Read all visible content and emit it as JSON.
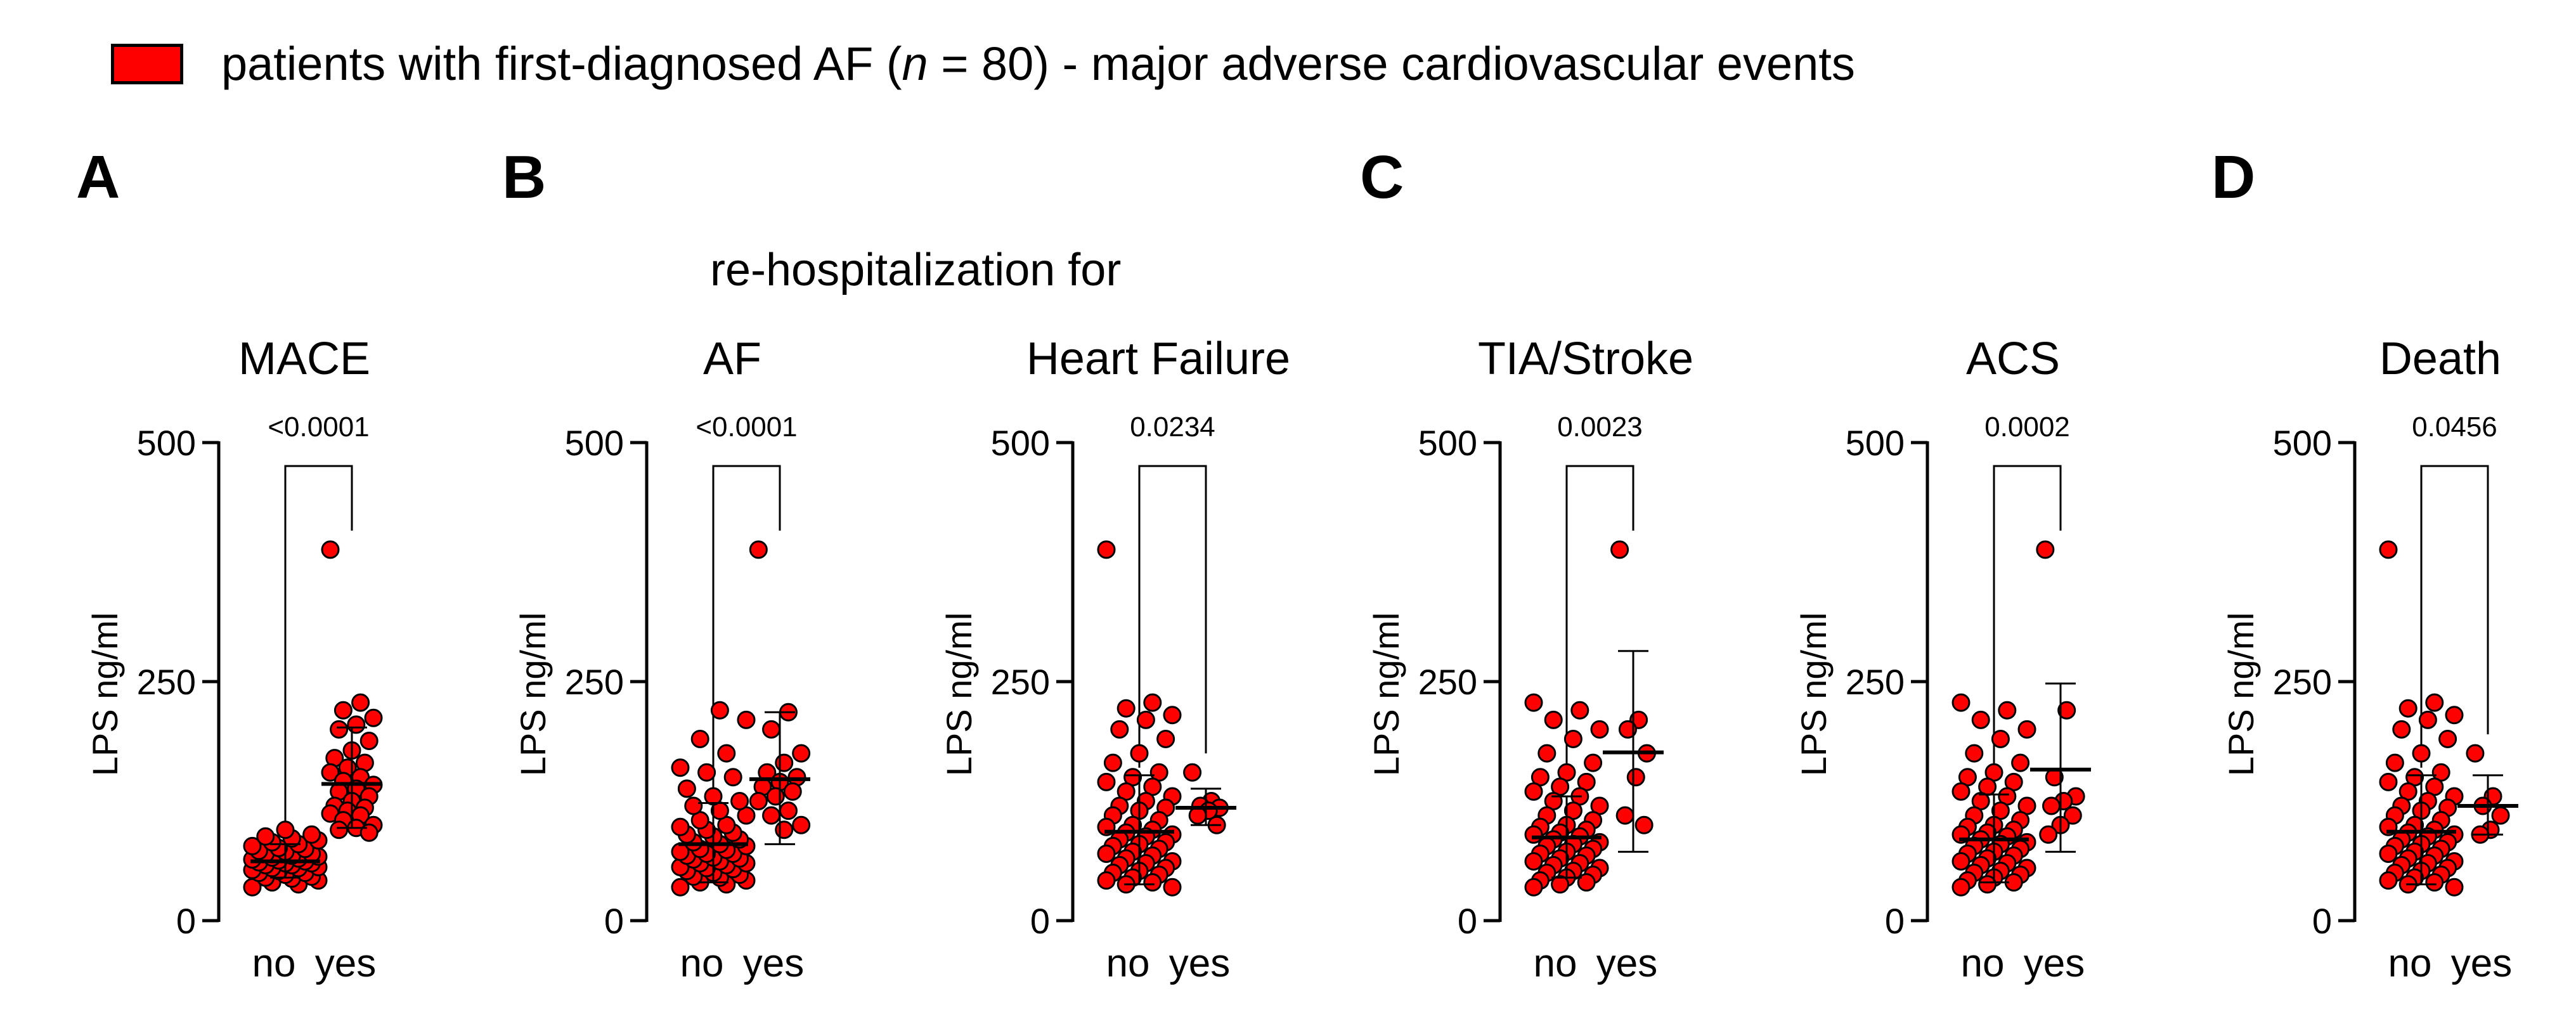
{
  "legend": {
    "prefix": "patients with first-diagnosed AF (",
    "n_symbol": "n",
    "suffix": " = 80) - major adverse cardiovascular events",
    "color": "#ff0000"
  },
  "panel_letters": [
    "A",
    "B",
    "C",
    "D"
  ],
  "group_caption": "re-hospitalization for",
  "colors": {
    "point_fill": "#ff0000",
    "point_stroke": "#000000",
    "axis": "#000000"
  },
  "chart_data": [
    {
      "type": "scatter",
      "title": "MACE",
      "ylabel": "LPS ng/ml",
      "categories": [
        "no",
        "yes"
      ],
      "ylim": [
        0,
        500
      ],
      "yticks": [
        0,
        250,
        500
      ],
      "p_value": "<0.0001",
      "series": [
        {
          "name": "no",
          "mean": 62,
          "sd_low": 45,
          "sd_high": 80,
          "values": [
            35,
            38,
            40,
            42,
            44,
            45,
            46,
            48,
            50,
            50,
            52,
            53,
            55,
            55,
            56,
            58,
            58,
            60,
            60,
            61,
            62,
            63,
            64,
            65,
            66,
            67,
            68,
            70,
            70,
            72,
            73,
            75,
            76,
            78,
            80,
            82,
            84,
            86,
            88,
            90,
            95
          ]
        },
        {
          "name": "yes",
          "mean": 143,
          "sd_low": 97,
          "sd_high": 202,
          "values": [
            388,
            228,
            220,
            212,
            205,
            200,
            188,
            178,
            170,
            165,
            160,
            155,
            150,
            146,
            142,
            138,
            135,
            130,
            125,
            120,
            118,
            115,
            112,
            110,
            105,
            100,
            97,
            95,
            92
          ]
        }
      ]
    },
    {
      "type": "scatter",
      "title": "AF",
      "ylabel": "LPS ng/ml",
      "categories": [
        "no",
        "yes"
      ],
      "ylim": [
        0,
        500
      ],
      "yticks": [
        0,
        250,
        500
      ],
      "p_value": "<0.0001",
      "series": [
        {
          "name": "no",
          "mean": 80,
          "sd_low": 40,
          "sd_high": 123,
          "values": [
            35,
            38,
            40,
            42,
            45,
            46,
            48,
            50,
            52,
            54,
            55,
            56,
            58,
            60,
            60,
            62,
            64,
            65,
            66,
            68,
            70,
            70,
            72,
            74,
            75,
            78,
            80,
            82,
            85,
            88,
            90,
            92,
            95,
            98,
            100,
            105,
            110,
            115,
            120,
            125,
            130,
            138,
            150,
            155,
            160,
            175,
            190,
            210,
            220
          ]
        },
        {
          "name": "yes",
          "mean": 148,
          "sd_low": 80,
          "sd_high": 218,
          "values": [
            388,
            218,
            200,
            175,
            165,
            155,
            150,
            145,
            140,
            135,
            130,
            125,
            115,
            110,
            100,
            95
          ]
        }
      ]
    },
    {
      "type": "scatter",
      "title": "Heart Failure",
      "ylabel": "LPS ng/ml",
      "categories": [
        "no",
        "yes"
      ],
      "ylim": [
        0,
        500
      ],
      "yticks": [
        0,
        250,
        500
      ],
      "p_value": "0.0234",
      "series": [
        {
          "name": "no",
          "mean": 93,
          "sd_low": 38,
          "sd_high": 152,
          "values": [
            388,
            228,
            222,
            215,
            210,
            200,
            190,
            175,
            165,
            155,
            150,
            145,
            140,
            135,
            130,
            125,
            120,
            118,
            115,
            110,
            105,
            100,
            98,
            95,
            92,
            90,
            88,
            85,
            82,
            80,
            78,
            75,
            72,
            70,
            68,
            65,
            62,
            60,
            58,
            55,
            52,
            50,
            48,
            45,
            42,
            40,
            38,
            35
          ]
        },
        {
          "name": "yes",
          "mean": 118,
          "sd_low": 100,
          "sd_high": 138,
          "values": [
            155,
            125,
            120,
            118,
            115,
            110,
            100
          ]
        }
      ]
    },
    {
      "type": "scatter",
      "title": "TIA/Stroke",
      "ylabel": "LPS ng/ml",
      "categories": [
        "no",
        "yes"
      ],
      "ylim": [
        0,
        500
      ],
      "yticks": [
        0,
        250,
        500
      ],
      "p_value": "0.0023",
      "series": [
        {
          "name": "no",
          "mean": 87,
          "sd_low": 45,
          "sd_high": 130,
          "values": [
            228,
            220,
            210,
            200,
            190,
            175,
            165,
            155,
            150,
            145,
            140,
            135,
            130,
            125,
            120,
            115,
            110,
            105,
            100,
            98,
            95,
            92,
            90,
            88,
            85,
            82,
            80,
            78,
            75,
            72,
            70,
            68,
            65,
            62,
            60,
            58,
            55,
            52,
            50,
            48,
            45,
            42,
            40,
            38,
            35
          ]
        },
        {
          "name": "yes",
          "mean": 176,
          "sd_low": 72,
          "sd_high": 282,
          "values": [
            388,
            210,
            200,
            175,
            150,
            110,
            100
          ]
        }
      ]
    },
    {
      "type": "scatter",
      "title": "ACS",
      "ylabel": "LPS ng/ml",
      "categories": [
        "no",
        "yes"
      ],
      "ylim": [
        0,
        500
      ],
      "yticks": [
        0,
        250,
        500
      ],
      "p_value": "0.0002",
      "series": [
        {
          "name": "no",
          "mean": 85,
          "sd_low": 40,
          "sd_high": 132,
          "values": [
            228,
            220,
            210,
            200,
            190,
            175,
            165,
            155,
            150,
            145,
            140,
            135,
            130,
            125,
            120,
            115,
            110,
            105,
            100,
            98,
            95,
            92,
            90,
            88,
            85,
            82,
            80,
            78,
            75,
            72,
            70,
            68,
            65,
            62,
            60,
            58,
            55,
            52,
            50,
            48,
            45,
            42,
            40,
            38,
            35
          ]
        },
        {
          "name": "yes",
          "mean": 158,
          "sd_low": 72,
          "sd_high": 248,
          "values": [
            388,
            220,
            150,
            130,
            125,
            120,
            110,
            100,
            90
          ]
        }
      ]
    },
    {
      "type": "scatter",
      "title": "Death",
      "ylabel": "LPS ng/ml",
      "categories": [
        "no",
        "yes"
      ],
      "ylim": [
        0,
        500
      ],
      "yticks": [
        0,
        250,
        500
      ],
      "p_value": "0.0456",
      "series": [
        {
          "name": "no",
          "mean": 93,
          "sd_low": 38,
          "sd_high": 152,
          "values": [
            388,
            228,
            222,
            215,
            210,
            200,
            190,
            175,
            165,
            155,
            150,
            145,
            140,
            135,
            130,
            125,
            120,
            118,
            115,
            110,
            105,
            100,
            98,
            95,
            92,
            90,
            88,
            85,
            82,
            80,
            78,
            75,
            72,
            70,
            68,
            65,
            62,
            60,
            58,
            55,
            52,
            50,
            48,
            45,
            42,
            40,
            38,
            35
          ]
        },
        {
          "name": "yes",
          "mean": 120,
          "sd_low": 90,
          "sd_high": 152,
          "values": [
            175,
            130,
            120,
            110,
            95,
            90
          ]
        }
      ]
    }
  ]
}
